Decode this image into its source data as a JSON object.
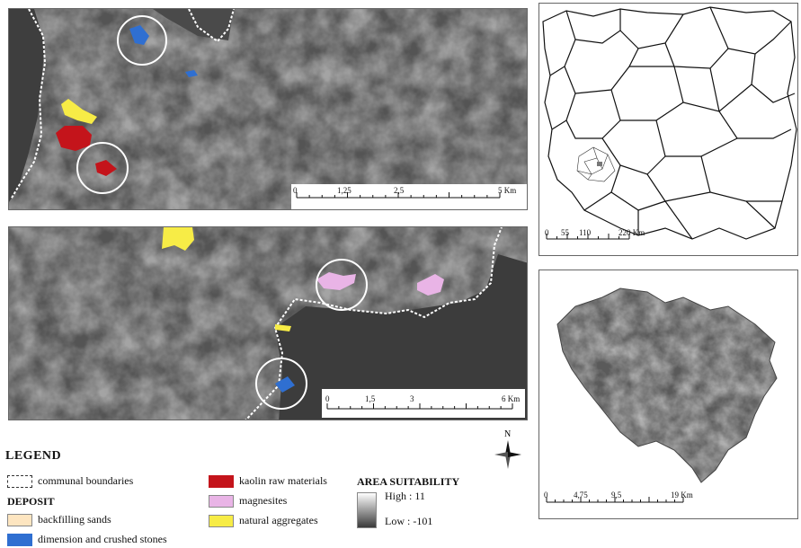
{
  "map_top": {
    "scale_labels": [
      "0",
      "1,25",
      "2,5",
      "5 Km"
    ]
  },
  "map_bottom": {
    "scale_labels": [
      "0",
      "1,5",
      "3",
      "6 Km"
    ]
  },
  "map_country": {
    "scale_labels": [
      "0",
      "55",
      "110",
      "220 Km"
    ]
  },
  "map_region": {
    "scale_labels": [
      "0",
      "4,75",
      "9,5",
      "19 Km"
    ]
  },
  "north_arrow": {
    "label": "N"
  },
  "legend": {
    "title": "LEGEND",
    "communal_boundaries": "communal boundaries",
    "deposit_title": "DEPOSIT",
    "deposits": [
      {
        "label": "backfilling sands",
        "color": "#fde5c0"
      },
      {
        "label": "dimension and crushed stones",
        "color": "#2f6fd1"
      },
      {
        "label": "kaolin raw materials",
        "color": "#c4141b"
      },
      {
        "label": "magnesites",
        "color": "#e9b4e6"
      },
      {
        "label": "natural aggregates",
        "color": "#f7ec46"
      }
    ],
    "suitability_title": "AREA SUITABILITY",
    "high_label": "High : 11",
    "low_label": "Low : -101"
  }
}
